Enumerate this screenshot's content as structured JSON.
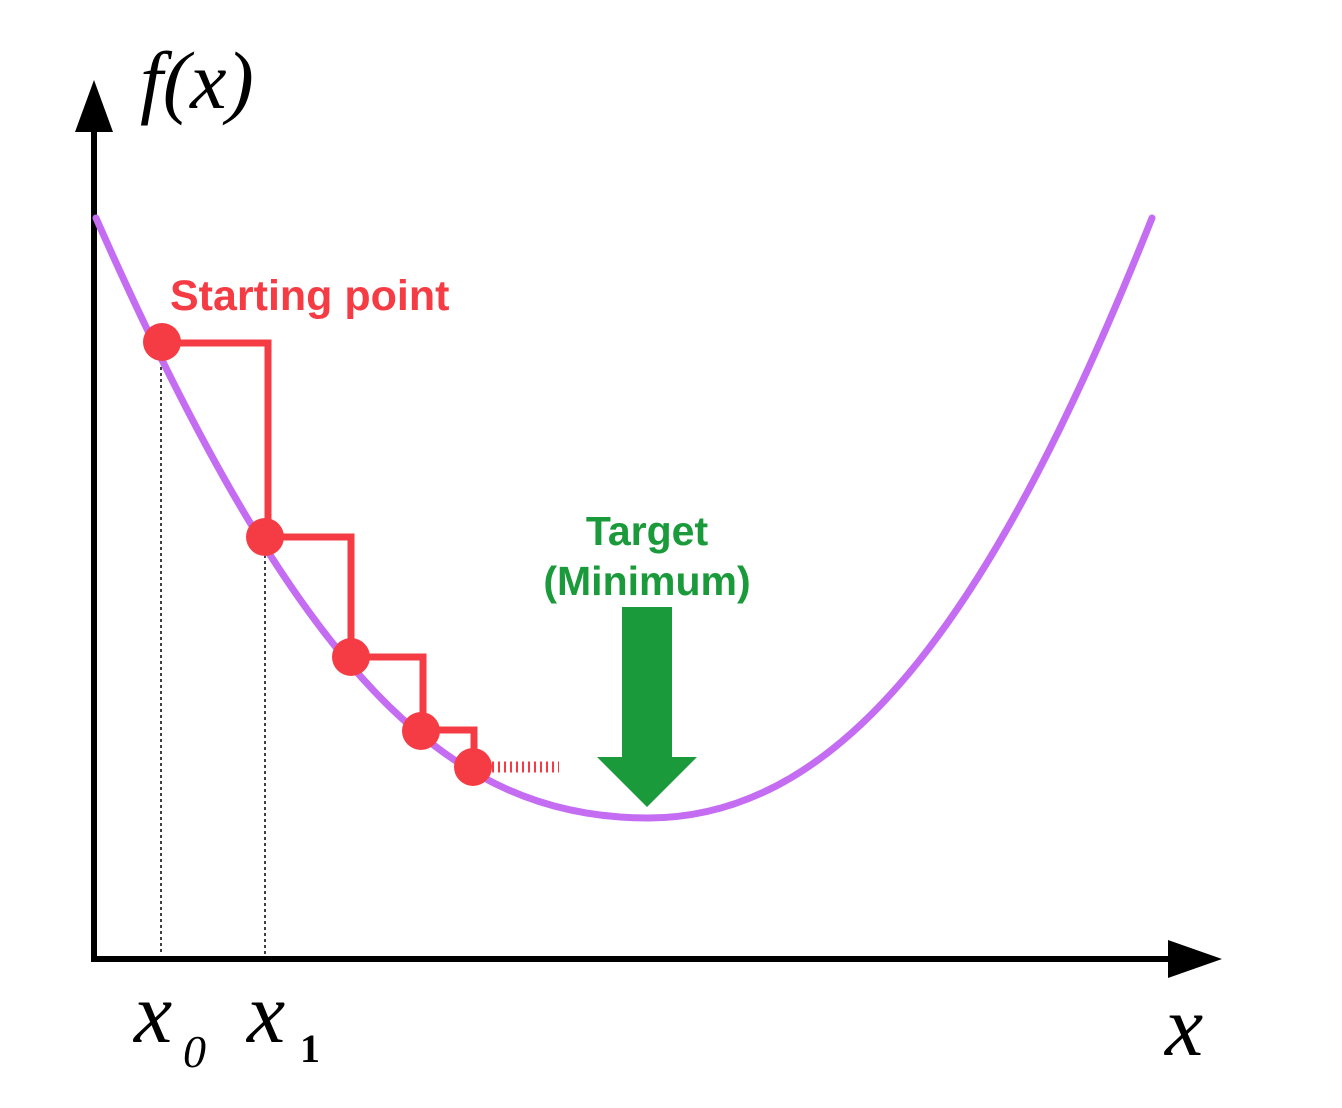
{
  "diagram": {
    "y_axis_label": "f(x)",
    "x_axis_label": "x",
    "x0_label": {
      "base": "x",
      "sub": "0"
    },
    "x1_label": {
      "base": "x",
      "sub": "1"
    },
    "start_label": "Starting point",
    "target_label_line1": "Target",
    "target_label_line2": "(Minimum)"
  },
  "colors": {
    "curve": "#c46cf2",
    "steps": "#f53c44",
    "target": "#1a9a3a",
    "axes": "#000000"
  }
}
